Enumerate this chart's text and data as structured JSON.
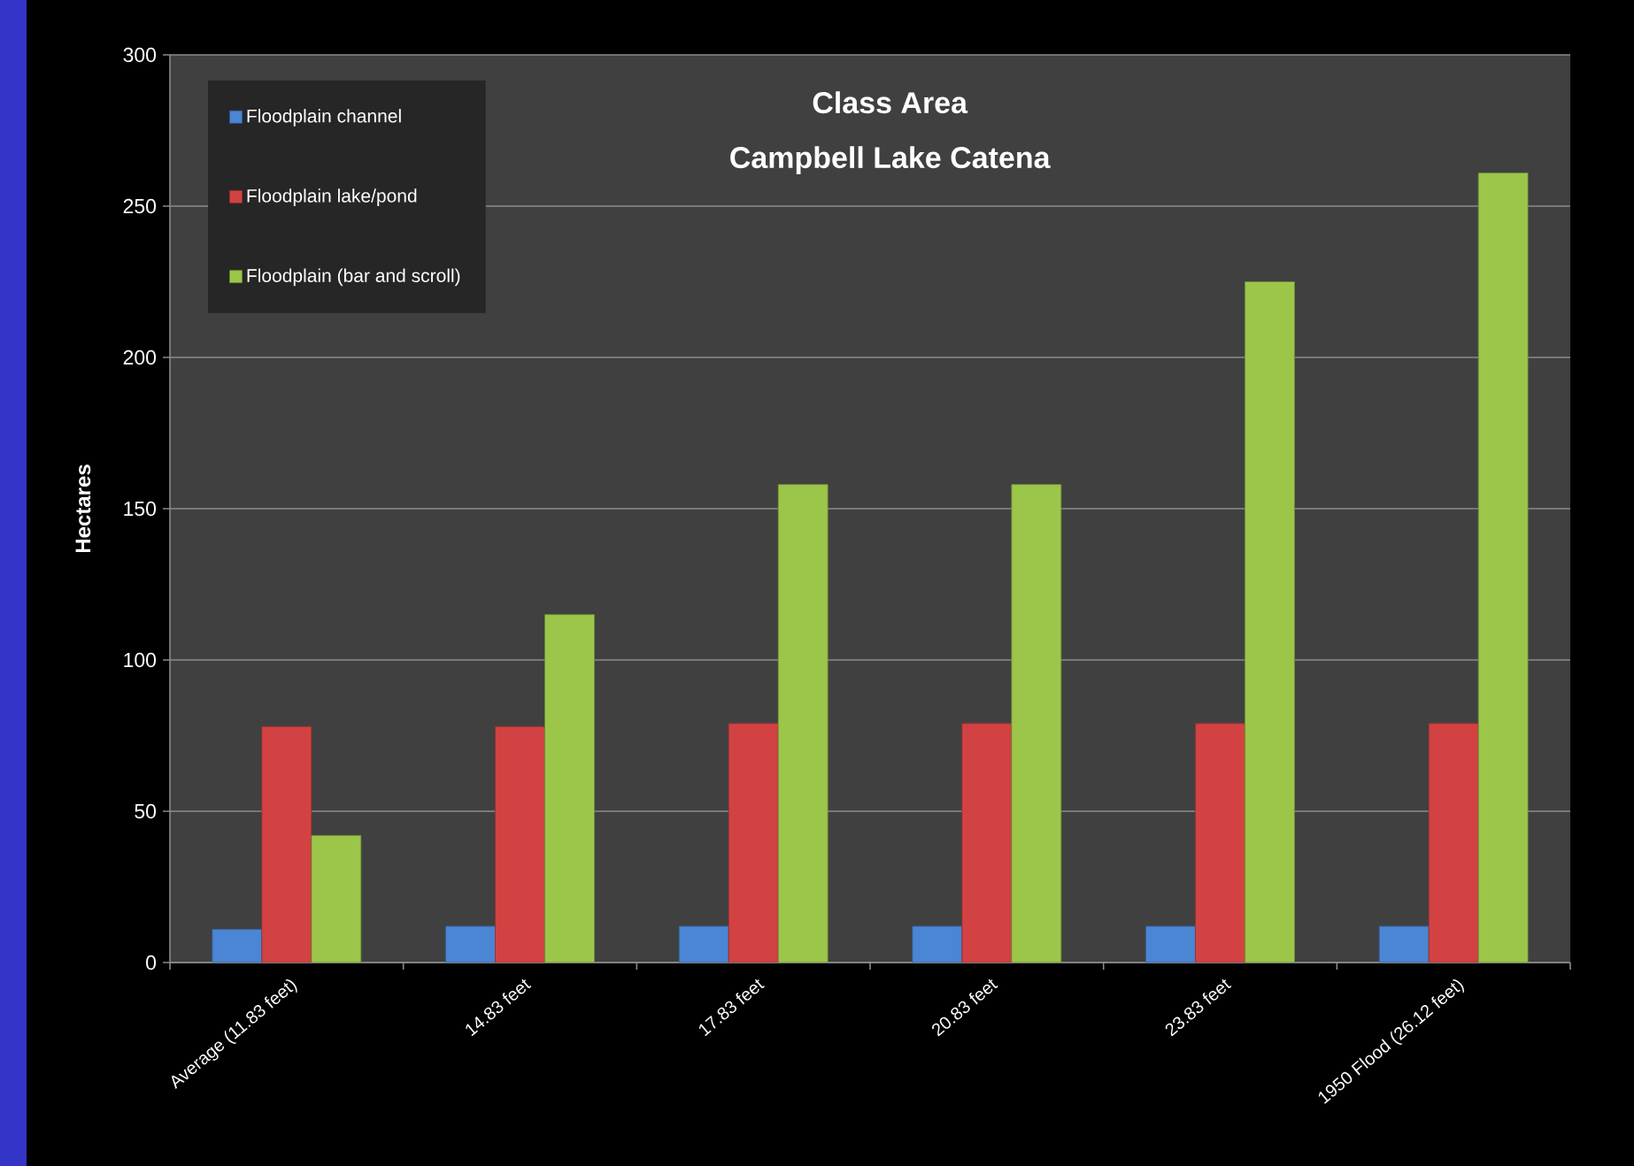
{
  "chart_data": {
    "type": "bar",
    "title": "Class Area",
    "subtitle": "Campbell Lake Catena",
    "ylabel": "Hectares",
    "categories": [
      "Average (11.83 feet)",
      "14.83 feet",
      "17.83 feet",
      "20.83 feet",
      "23.83 feet",
      "1950 Flood (26.12 feet)"
    ],
    "series": [
      {
        "name": "Floodplain channel",
        "color": "#4a86d4",
        "values": [
          11,
          12,
          12,
          12,
          12,
          12
        ]
      },
      {
        "name": "Floodplain lake/pond",
        "color": "#d24242",
        "values": [
          78,
          78,
          79,
          79,
          79,
          79
        ]
      },
      {
        "name": "Floodplain (bar and scroll)",
        "color": "#9bc64a",
        "values": [
          42,
          115,
          158,
          158,
          225,
          261
        ]
      }
    ],
    "ylim": [
      0,
      300
    ],
    "yticks": [
      0,
      50,
      100,
      150,
      200,
      250,
      300
    ],
    "grid": "y",
    "legend": "top left"
  }
}
